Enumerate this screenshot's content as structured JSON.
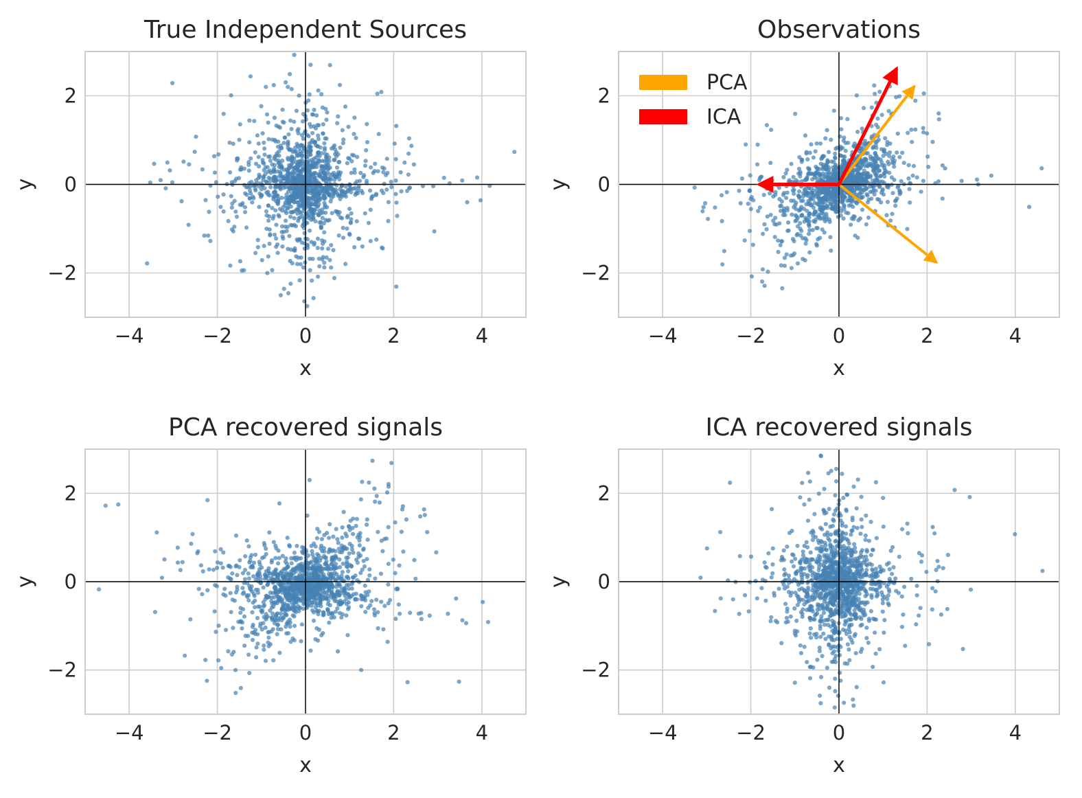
{
  "chart_data": [
    {
      "type": "scatter",
      "title": "True Independent Sources",
      "xlabel": "x",
      "ylabel": "y",
      "xlim": [
        -5,
        5
      ],
      "ylim": [
        -3,
        3
      ],
      "xticks": [
        -4,
        -2,
        0,
        2,
        4
      ],
      "yticks": [
        -2,
        0,
        2
      ],
      "xtick_labels": [
        "−4",
        "−2",
        "0",
        "2",
        "4"
      ],
      "ytick_labels": [
        "−2",
        "0",
        "2"
      ],
      "grid": true,
      "point_color": "#4682b4",
      "shape": {
        "kind": "cross",
        "center": [
          0,
          0
        ],
        "axis_angles_deg": [
          0,
          90
        ],
        "spread": [
          0.5,
          0.5
        ],
        "tail": [
          2.2,
          1.4
        ],
        "count": 1300
      }
    },
    {
      "type": "scatter",
      "title": "Observations",
      "xlabel": "x",
      "ylabel": "y",
      "xlim": [
        -5,
        5
      ],
      "ylim": [
        -3,
        3
      ],
      "xticks": [
        -4,
        -2,
        0,
        2,
        4
      ],
      "yticks": [
        -2,
        0,
        2
      ],
      "xtick_labels": [
        "−4",
        "−2",
        "0",
        "2",
        "4"
      ],
      "ytick_labels": [
        "−2",
        "0",
        "2"
      ],
      "grid": true,
      "point_color": "#4682b4",
      "shape": {
        "kind": "cross",
        "center": [
          0,
          0
        ],
        "axis_angles_deg": [
          0,
          56
        ],
        "spread": [
          0.45,
          0.45
        ],
        "tail": [
          2.2,
          2.0
        ],
        "count": 1300
      },
      "legend": {
        "placement": "upper-left",
        "entries": [
          {
            "label": "PCA",
            "color": "#ffa500"
          },
          {
            "label": "ICA",
            "color": "#ff0000"
          }
        ]
      },
      "arrows": [
        {
          "series": "PCA",
          "color": "#ffa500",
          "from": [
            0,
            0
          ],
          "to": [
            1.7,
            2.2
          ]
        },
        {
          "series": "PCA",
          "color": "#ffa500",
          "from": [
            0,
            0
          ],
          "to": [
            2.2,
            -1.75
          ]
        },
        {
          "series": "ICA",
          "color": "#ff0000",
          "from": [
            0,
            0
          ],
          "to": [
            1.3,
            2.6
          ]
        },
        {
          "series": "ICA",
          "color": "#ff0000",
          "from": [
            0,
            0
          ],
          "to": [
            -1.8,
            0
          ]
        }
      ]
    },
    {
      "type": "scatter",
      "title": "PCA recovered signals",
      "xlabel": "x",
      "ylabel": "y",
      "xlim": [
        -5,
        5
      ],
      "ylim": [
        -3,
        3
      ],
      "xticks": [
        -4,
        -2,
        0,
        2,
        4
      ],
      "yticks": [
        -2,
        0,
        2
      ],
      "xtick_labels": [
        "−4",
        "−2",
        "0",
        "2",
        "4"
      ],
      "ytick_labels": [
        "−2",
        "0",
        "2"
      ],
      "grid": true,
      "point_color": "#4682b4",
      "shape": {
        "kind": "cross",
        "center": [
          0,
          -0.1
        ],
        "axis_angles_deg": [
          -14,
          50
        ],
        "spread": [
          0.5,
          0.5
        ],
        "tail": [
          2.3,
          1.9
        ],
        "count": 1300
      }
    },
    {
      "type": "scatter",
      "title": "ICA recovered signals",
      "xlabel": "x",
      "ylabel": "y",
      "xlim": [
        -5,
        5
      ],
      "ylim": [
        -3,
        3
      ],
      "xticks": [
        -4,
        -2,
        0,
        2,
        4
      ],
      "yticks": [
        -2,
        0,
        2
      ],
      "xtick_labels": [
        "−4",
        "−2",
        "0",
        "2",
        "4"
      ],
      "ytick_labels": [
        "−2",
        "0",
        "2"
      ],
      "grid": true,
      "point_color": "#4682b4",
      "shape": {
        "kind": "cross",
        "center": [
          0,
          0
        ],
        "axis_angles_deg": [
          0,
          90
        ],
        "spread": [
          0.45,
          0.55
        ],
        "tail": [
          1.8,
          1.4
        ],
        "count": 1300
      }
    }
  ]
}
